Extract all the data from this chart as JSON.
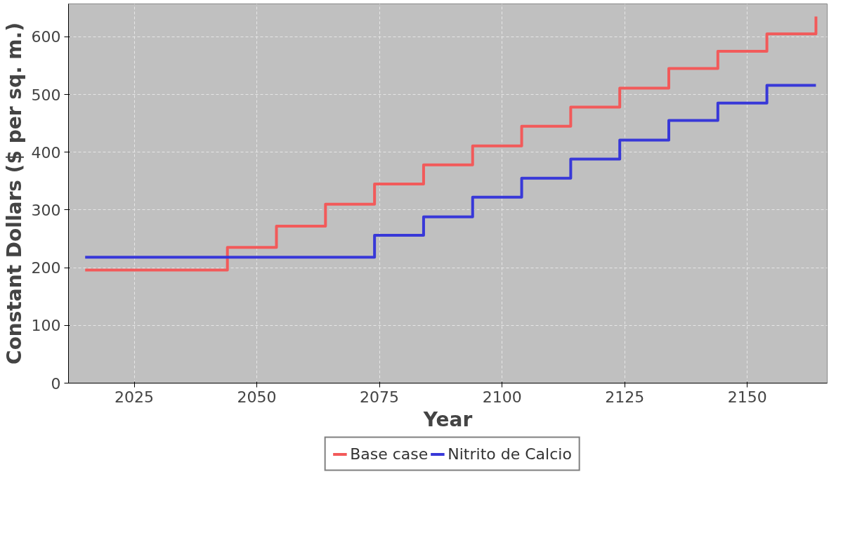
{
  "chart_data": {
    "type": "step",
    "xlabel": "Year",
    "ylabel": "Constant Dollars ($ per sq. m.)",
    "series": [
      {
        "name": "Base case",
        "color": "#f25a5a",
        "x": [
          2015,
          2044,
          2054,
          2064,
          2074,
          2084,
          2094,
          2104,
          2114,
          2124,
          2134,
          2144,
          2154,
          2164
        ],
        "values": [
          196,
          235,
          272,
          310,
          345,
          378,
          411,
          445,
          478,
          511,
          545,
          575,
          605,
          635
        ]
      },
      {
        "name": "Nitrito de Calcio",
        "color": "#3838d8",
        "x": [
          2015,
          2074,
          2084,
          2094,
          2104,
          2114,
          2124,
          2134,
          2144,
          2154,
          2164
        ],
        "values": [
          218,
          256,
          288,
          322,
          355,
          388,
          421,
          455,
          485,
          516,
          516
        ]
      }
    ],
    "xlim": [
      2011.6,
      2166.3
    ],
    "ylim": [
      0,
      657
    ],
    "xticks": [
      2025,
      2050,
      2075,
      2100,
      2125,
      2150
    ],
    "yticks": [
      0,
      100,
      200,
      300,
      400,
      500,
      600
    ],
    "grid": true,
    "legend": "bottom",
    "line_style": "solid",
    "marker": "none"
  }
}
